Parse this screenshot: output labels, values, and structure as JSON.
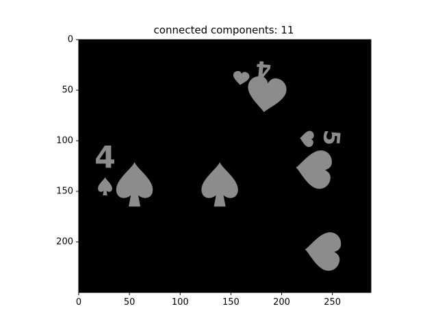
{
  "chart_data": {
    "type": "image",
    "title": "connected components: 11",
    "xlabel": "",
    "ylabel": "",
    "xlim": [
      0,
      288
    ],
    "ylim": [
      250,
      0
    ],
    "x_ticks": [
      0,
      50,
      100,
      150,
      200,
      250
    ],
    "y_ticks": [
      0,
      50,
      100,
      150,
      200
    ],
    "grid": false,
    "colors": {
      "background": "#000000",
      "component": "#8c8c8c"
    },
    "components": [
      {
        "shape": "spade",
        "cx": 55,
        "cy": 143,
        "w": 36,
        "h": 44,
        "rotate": 0
      },
      {
        "shape": "spade",
        "cx": 139,
        "cy": 143,
        "w": 36,
        "h": 44,
        "rotate": 0
      },
      {
        "shape": "spade",
        "cx": 26,
        "cy": 145,
        "w": 14,
        "h": 18,
        "rotate": 0
      },
      {
        "shape": "heart",
        "cx": 185,
        "cy": 54,
        "w": 38,
        "h": 36,
        "rotate": 8
      },
      {
        "shape": "heart",
        "cx": 160,
        "cy": 38,
        "w": 16,
        "h": 14,
        "rotate": 8
      },
      {
        "shape": "heart",
        "cx": 232,
        "cy": 128,
        "w": 38,
        "h": 36,
        "rotate": 95
      },
      {
        "shape": "heart",
        "cx": 225,
        "cy": 98,
        "w": 16,
        "h": 14,
        "rotate": 95
      },
      {
        "shape": "heart",
        "cx": 241,
        "cy": 209,
        "w": 38,
        "h": 36,
        "rotate": 95
      },
      {
        "shape": "glyph",
        "text": "4",
        "cx": 26,
        "cy": 117,
        "size": 30,
        "rotate": 0
      },
      {
        "shape": "glyph",
        "text": "4",
        "cx": 182,
        "cy": 29,
        "size": 22,
        "rotate": 185
      },
      {
        "shape": "glyph",
        "text": "5",
        "cx": 249,
        "cy": 97,
        "size": 22,
        "rotate": 95
      }
    ]
  }
}
